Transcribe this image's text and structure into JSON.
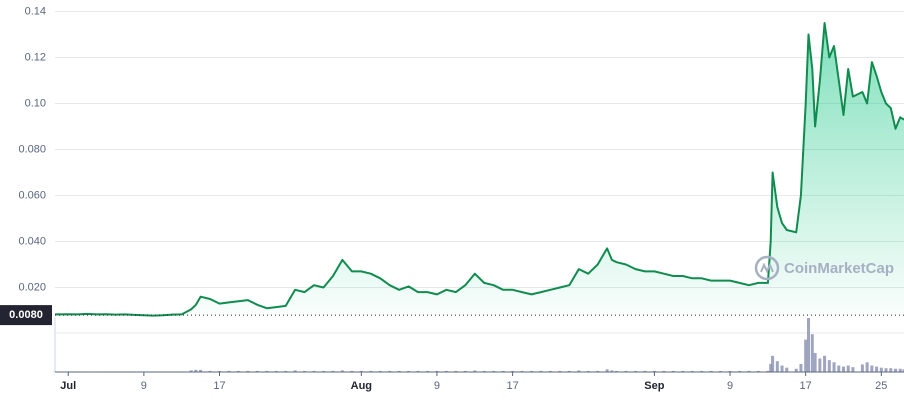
{
  "chart_data": {
    "type": "line",
    "x": [
      -1.4,
      0,
      1,
      2,
      3,
      4,
      5,
      6,
      7,
      8,
      9,
      10,
      11,
      12,
      13,
      13.5,
      14,
      15,
      16,
      17,
      18,
      19,
      20,
      21,
      22,
      23,
      24,
      25,
      26,
      27,
      28,
      29,
      30,
      31,
      32,
      33,
      34,
      35,
      36,
      37,
      38,
      39,
      40,
      41,
      42,
      43,
      44,
      45,
      46,
      47,
      48,
      49,
      50,
      51,
      52,
      53,
      54,
      55,
      56,
      57,
      57.5,
      58,
      59,
      60,
      61,
      62,
      63,
      64,
      65,
      66,
      67,
      68,
      69,
      70,
      71,
      72,
      73,
      74,
      74.3,
      74.5,
      75,
      75.5,
      76,
      77,
      77.5,
      78,
      78.3,
      78.7,
      79,
      79.5,
      80,
      80.5,
      81,
      81.5,
      82,
      82.5,
      83,
      84,
      84.5,
      85,
      85.5,
      86,
      86.5,
      87,
      87.5,
      88,
      88.4
    ],
    "series": [
      {
        "color": "#118c4f",
        "values": [
          0.0083,
          0.0084,
          0.0083,
          0.0085,
          0.0083,
          0.0084,
          0.0082,
          0.0083,
          0.0081,
          0.0079,
          0.0078,
          0.0079,
          0.0082,
          0.0083,
          0.0105,
          0.0125,
          0.016,
          0.015,
          0.013,
          0.0135,
          0.014,
          0.0145,
          0.0125,
          0.011,
          0.0115,
          0.012,
          0.019,
          0.018,
          0.021,
          0.02,
          0.025,
          0.032,
          0.027,
          0.027,
          0.026,
          0.024,
          0.021,
          0.019,
          0.0205,
          0.018,
          0.018,
          0.017,
          0.019,
          0.018,
          0.021,
          0.026,
          0.022,
          0.021,
          0.019,
          0.019,
          0.018,
          0.017,
          0.018,
          0.019,
          0.02,
          0.021,
          0.028,
          0.026,
          0.03,
          0.037,
          0.032,
          0.031,
          0.03,
          0.028,
          0.027,
          0.027,
          0.026,
          0.025,
          0.025,
          0.024,
          0.024,
          0.023,
          0.023,
          0.023,
          0.022,
          0.021,
          0.022,
          0.022,
          0.04,
          0.07,
          0.055,
          0.048,
          0.045,
          0.044,
          0.06,
          0.1,
          0.13,
          0.115,
          0.09,
          0.11,
          0.135,
          0.12,
          0.125,
          0.11,
          0.095,
          0.115,
          0.103,
          0.105,
          0.1,
          0.118,
          0.112,
          0.105,
          0.1,
          0.098,
          0.089,
          0.094,
          0.093
        ]
      },
      {
        "name": "volume",
        "color": "#8e95b5",
        "values": [
          1,
          1,
          1,
          1,
          1,
          1,
          1,
          1,
          1,
          1,
          1,
          1,
          1,
          1,
          3,
          4,
          4,
          2,
          2,
          2,
          2,
          2,
          2,
          2,
          2,
          2,
          3,
          2,
          2,
          2,
          2,
          3,
          2,
          2,
          2,
          2,
          2,
          2,
          2,
          2,
          2,
          2,
          2,
          2,
          2,
          3,
          2,
          2,
          2,
          2,
          2,
          2,
          2,
          2,
          2,
          2,
          3,
          2,
          2,
          5,
          3,
          2,
          2,
          2,
          2,
          2,
          2,
          2,
          2,
          2,
          2,
          2,
          2,
          2,
          2,
          2,
          2,
          2,
          15,
          30,
          20,
          12,
          8,
          6,
          15,
          60,
          100,
          70,
          35,
          25,
          30,
          22,
          18,
          12,
          10,
          12,
          9,
          14,
          18,
          12,
          10,
          8,
          7,
          7,
          6,
          6,
          5
        ]
      }
    ],
    "xlim": [
      -1.4,
      88.4
    ],
    "ylim": [
      0,
      0.145
    ],
    "vlim": [
      0,
      100
    ],
    "xticks": [
      {
        "value": 0,
        "label": "Jul"
      },
      {
        "value": 8,
        "label": "9"
      },
      {
        "value": 16,
        "label": "17"
      },
      {
        "value": 31,
        "label": "Aug"
      },
      {
        "value": 39,
        "label": "9"
      },
      {
        "value": 47,
        "label": "17"
      },
      {
        "value": 62,
        "label": "Sep"
      },
      {
        "value": 70,
        "label": "9"
      },
      {
        "value": 78,
        "label": "17"
      },
      {
        "value": 86,
        "label": "25"
      }
    ],
    "yticks": [
      0.14,
      0.12,
      {
        "value": 0.1,
        "label": "0.10"
      },
      {
        "value": 0.08,
        "label": "0.080"
      },
      {
        "value": 0.06,
        "label": "0.060"
      },
      {
        "value": 0.04,
        "label": "0.040"
      },
      {
        "value": 0.02,
        "label": "0.020"
      }
    ],
    "reference_line": {
      "value": 0.008,
      "label": "0.0080"
    },
    "watermark": "CoinMarketCap",
    "grid": true
  }
}
